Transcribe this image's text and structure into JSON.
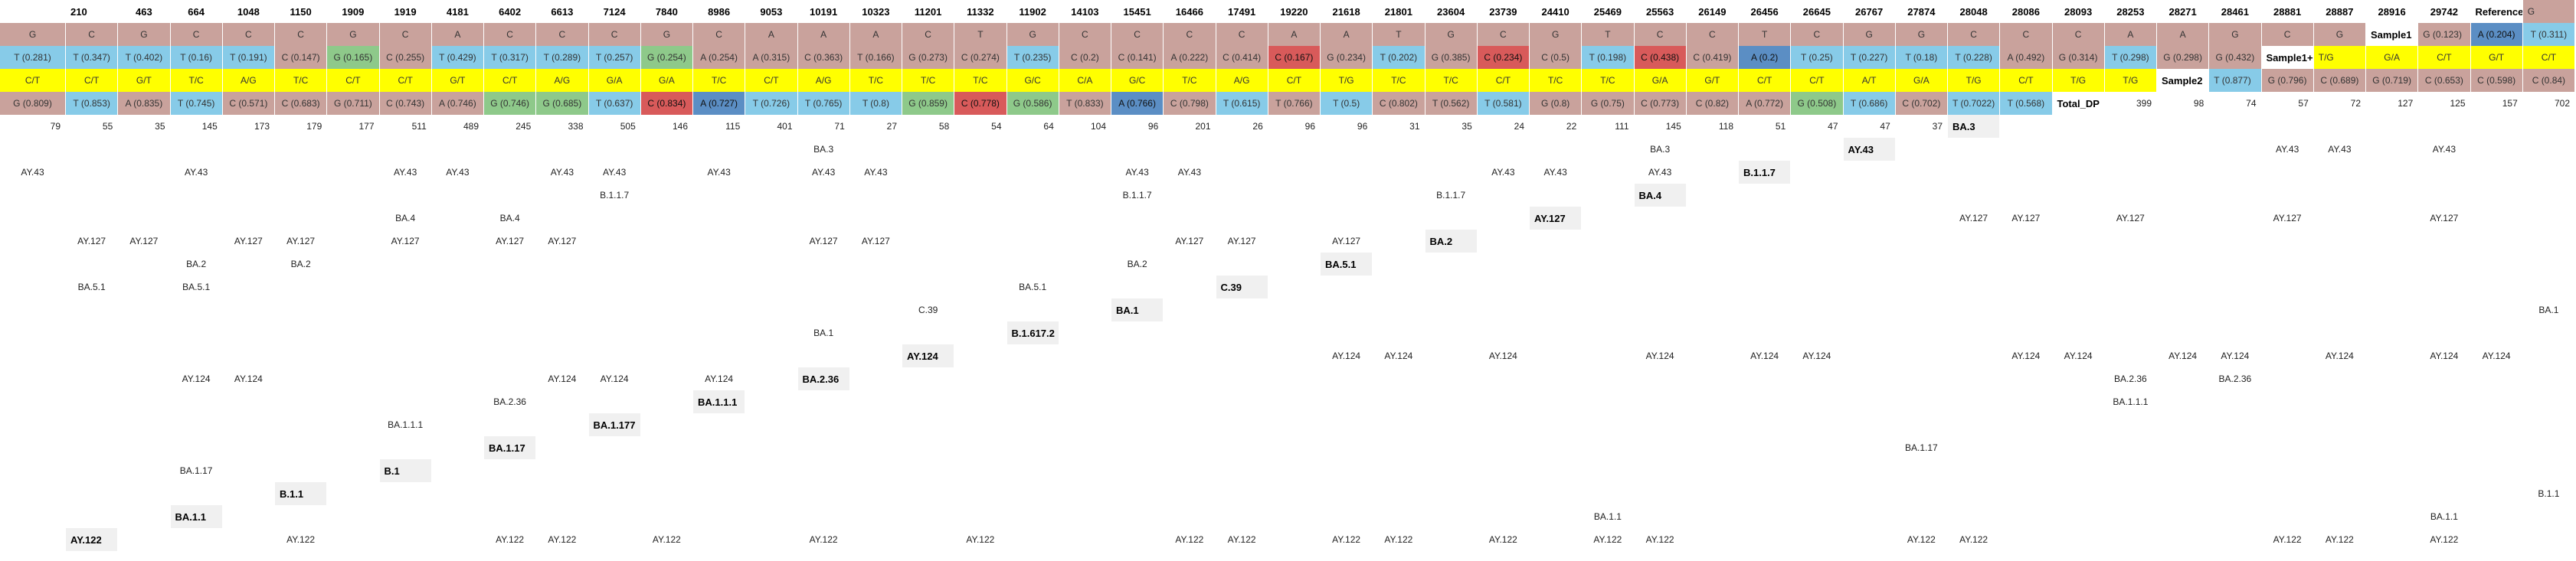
{
  "positions": [
    "210",
    "463",
    "664",
    "1048",
    "1150",
    "1909",
    "1919",
    "4181",
    "6402",
    "6613",
    "7124",
    "7840",
    "8986",
    "9053",
    "10191",
    "10323",
    "11201",
    "11332",
    "11902",
    "14103",
    "15451",
    "16466",
    "17491",
    "19220",
    "21618",
    "21801",
    "23604",
    "23739",
    "24410",
    "25469",
    "25563",
    "26149",
    "26456",
    "26645",
    "26767",
    "27874",
    "28048",
    "28086",
    "28093",
    "28253",
    "28271",
    "28461",
    "28881",
    "28887",
    "28916",
    "29742"
  ],
  "colors": {
    "G": "#c9a29c",
    "C": "#c9a29c",
    "A": "#c9a29c",
    "T": "#c9a29c",
    "blue": "#5b8ec4",
    "lightblue": "#87cbe8",
    "green": "#8ec98a",
    "red": "#d85a5a",
    "yellow": "#ffff00"
  },
  "rows": [
    {
      "label": "Reference",
      "cells": [
        {
          "t": "G",
          "c": "G"
        },
        {
          "t": "G",
          "c": "G"
        },
        {
          "t": "C",
          "c": "C"
        },
        {
          "t": "G",
          "c": "G"
        },
        {
          "t": "C",
          "c": "C"
        },
        {
          "t": "C",
          "c": "C"
        },
        {
          "t": "C",
          "c": "C"
        },
        {
          "t": "G",
          "c": "G"
        },
        {
          "t": "C",
          "c": "C"
        },
        {
          "t": "A",
          "c": "A"
        },
        {
          "t": "C",
          "c": "C"
        },
        {
          "t": "C",
          "c": "C"
        },
        {
          "t": "C",
          "c": "C"
        },
        {
          "t": "G",
          "c": "G"
        },
        {
          "t": "C",
          "c": "C"
        },
        {
          "t": "A",
          "c": "A"
        },
        {
          "t": "A",
          "c": "A"
        },
        {
          "t": "A",
          "c": "A"
        },
        {
          "t": "C",
          "c": "C"
        },
        {
          "t": "T",
          "c": "T"
        },
        {
          "t": "G",
          "c": "G"
        },
        {
          "t": "C",
          "c": "C"
        },
        {
          "t": "C",
          "c": "C"
        },
        {
          "t": "C",
          "c": "C"
        },
        {
          "t": "C",
          "c": "C"
        },
        {
          "t": "A",
          "c": "A"
        },
        {
          "t": "A",
          "c": "A"
        },
        {
          "t": "T",
          "c": "T"
        },
        {
          "t": "G",
          "c": "G"
        },
        {
          "t": "C",
          "c": "C"
        },
        {
          "t": "G",
          "c": "G"
        },
        {
          "t": "T",
          "c": "T"
        },
        {
          "t": "C",
          "c": "C"
        },
        {
          "t": "C",
          "c": "C"
        },
        {
          "t": "T",
          "c": "T"
        },
        {
          "t": "C",
          "c": "C"
        },
        {
          "t": "G",
          "c": "G"
        },
        {
          "t": "G",
          "c": "G"
        },
        {
          "t": "C",
          "c": "C"
        },
        {
          "t": "C",
          "c": "C"
        },
        {
          "t": "C",
          "c": "C"
        },
        {
          "t": "A",
          "c": "A"
        },
        {
          "t": "A",
          "c": "A"
        },
        {
          "t": "G",
          "c": "G"
        },
        {
          "t": "C",
          "c": "C"
        },
        {
          "t": "G",
          "c": "G"
        }
      ]
    },
    {
      "label": "Sample1",
      "cells": [
        {
          "t": "G (0.123)",
          "c": "G"
        },
        {
          "t": "A (0.204)",
          "c": "blue"
        },
        {
          "t": "T (0.311)",
          "c": "lightblue"
        },
        {
          "t": "T (0.281)",
          "c": "lightblue"
        },
        {
          "t": "T (0.347)",
          "c": "lightblue"
        },
        {
          "t": "T (0.402)",
          "c": "lightblue"
        },
        {
          "t": "T (0.16)",
          "c": "lightblue"
        },
        {
          "t": "T (0.191)",
          "c": "lightblue"
        },
        {
          "t": "C (0.147)",
          "c": "C"
        },
        {
          "t": "G (0.165)",
          "c": "green"
        },
        {
          "t": "C (0.255)",
          "c": "C"
        },
        {
          "t": "T (0.429)",
          "c": "lightblue"
        },
        {
          "t": "T (0.317)",
          "c": "lightblue"
        },
        {
          "t": "T (0.289)",
          "c": "lightblue"
        },
        {
          "t": "T (0.257)",
          "c": "lightblue"
        },
        {
          "t": "G (0.254)",
          "c": "green"
        },
        {
          "t": "A (0.254)",
          "c": "A"
        },
        {
          "t": "A (0.315)",
          "c": "A"
        },
        {
          "t": "C (0.363)",
          "c": "C"
        },
        {
          "t": "T (0.166)",
          "c": "T"
        },
        {
          "t": "G (0.273)",
          "c": "G"
        },
        {
          "t": "C (0.274)",
          "c": "C"
        },
        {
          "t": "T (0.235)",
          "c": "lightblue"
        },
        {
          "t": "C (0.2)",
          "c": "C"
        },
        {
          "t": "C (0.141)",
          "c": "C"
        },
        {
          "t": "A (0.222)",
          "c": "A"
        },
        {
          "t": "C (0.414)",
          "c": "C"
        },
        {
          "t": "C (0.167)",
          "c": "red"
        },
        {
          "t": "G (0.234)",
          "c": "G"
        },
        {
          "t": "T (0.202)",
          "c": "lightblue"
        },
        {
          "t": "G (0.385)",
          "c": "G"
        },
        {
          "t": "C (0.234)",
          "c": "red"
        },
        {
          "t": "C (0.5)",
          "c": "C"
        },
        {
          "t": "T (0.198)",
          "c": "lightblue"
        },
        {
          "t": "C (0.438)",
          "c": "red"
        },
        {
          "t": "C (0.419)",
          "c": "C"
        },
        {
          "t": "A (0.2)",
          "c": "blue"
        },
        {
          "t": "T (0.25)",
          "c": "lightblue"
        },
        {
          "t": "T (0.227)",
          "c": "lightblue"
        },
        {
          "t": "T (0.18)",
          "c": "lightblue"
        },
        {
          "t": "T (0.228)",
          "c": "lightblue"
        },
        {
          "t": "A (0.492)",
          "c": "A"
        },
        {
          "t": "G (0.314)",
          "c": "G"
        },
        {
          "t": "T (0.298)",
          "c": "lightblue"
        },
        {
          "t": "G (0.298)",
          "c": "G"
        },
        {
          "t": "G (0.432)",
          "c": "G"
        }
      ]
    },
    {
      "label": "Sample1+2",
      "cells": [
        {
          "t": "T/G",
          "c": "yellow"
        },
        {
          "t": "G/A",
          "c": "yellow"
        },
        {
          "t": "C/T",
          "c": "yellow"
        },
        {
          "t": "G/T",
          "c": "yellow"
        },
        {
          "t": "C/T",
          "c": "yellow"
        },
        {
          "t": "C/T",
          "c": "yellow"
        },
        {
          "t": "C/T",
          "c": "yellow"
        },
        {
          "t": "G/T",
          "c": "yellow"
        },
        {
          "t": "T/C",
          "c": "yellow"
        },
        {
          "t": "A/G",
          "c": "yellow"
        },
        {
          "t": "T/C",
          "c": "yellow"
        },
        {
          "t": "C/T",
          "c": "yellow"
        },
        {
          "t": "C/T",
          "c": "yellow"
        },
        {
          "t": "G/T",
          "c": "yellow"
        },
        {
          "t": "C/T",
          "c": "yellow"
        },
        {
          "t": "A/G",
          "c": "yellow"
        },
        {
          "t": "G/A",
          "c": "yellow"
        },
        {
          "t": "G/A",
          "c": "yellow"
        },
        {
          "t": "T/C",
          "c": "yellow"
        },
        {
          "t": "C/T",
          "c": "yellow"
        },
        {
          "t": "A/G",
          "c": "yellow"
        },
        {
          "t": "T/C",
          "c": "yellow"
        },
        {
          "t": "T/C",
          "c": "yellow"
        },
        {
          "t": "T/C",
          "c": "yellow"
        },
        {
          "t": "G/C",
          "c": "yellow"
        },
        {
          "t": "C/A",
          "c": "yellow"
        },
        {
          "t": "G/C",
          "c": "yellow"
        },
        {
          "t": "T/C",
          "c": "yellow"
        },
        {
          "t": "A/G",
          "c": "yellow"
        },
        {
          "t": "C/T",
          "c": "yellow"
        },
        {
          "t": "T/G",
          "c": "yellow"
        },
        {
          "t": "T/C",
          "c": "yellow"
        },
        {
          "t": "T/C",
          "c": "yellow"
        },
        {
          "t": "C/T",
          "c": "yellow"
        },
        {
          "t": "T/C",
          "c": "yellow"
        },
        {
          "t": "T/C",
          "c": "yellow"
        },
        {
          "t": "G/A",
          "c": "yellow"
        },
        {
          "t": "G/T",
          "c": "yellow"
        },
        {
          "t": "C/T",
          "c": "yellow"
        },
        {
          "t": "C/T",
          "c": "yellow"
        },
        {
          "t": "A/T",
          "c": "yellow"
        },
        {
          "t": "G/A",
          "c": "yellow"
        },
        {
          "t": "T/G",
          "c": "yellow"
        },
        {
          "t": "C/T",
          "c": "yellow"
        },
        {
          "t": "T/G",
          "c": "yellow"
        },
        {
          "t": "T/G",
          "c": "yellow"
        }
      ]
    },
    {
      "label": "Sample2",
      "cells": [
        {
          "t": "T (0.877)",
          "c": "lightblue"
        },
        {
          "t": "G (0.796)",
          "c": "G"
        },
        {
          "t": "C (0.689)",
          "c": "C"
        },
        {
          "t": "G (0.719)",
          "c": "G"
        },
        {
          "t": "C (0.653)",
          "c": "C"
        },
        {
          "t": "C (0.598)",
          "c": "C"
        },
        {
          "t": "C (0.84)",
          "c": "C"
        },
        {
          "t": "G (0.809)",
          "c": "G"
        },
        {
          "t": "T (0.853)",
          "c": "lightblue"
        },
        {
          "t": "A (0.835)",
          "c": "A"
        },
        {
          "t": "T (0.745)",
          "c": "lightblue"
        },
        {
          "t": "C (0.571)",
          "c": "C"
        },
        {
          "t": "C (0.683)",
          "c": "C"
        },
        {
          "t": "G (0.711)",
          "c": "G"
        },
        {
          "t": "C (0.743)",
          "c": "C"
        },
        {
          "t": "A (0.746)",
          "c": "A"
        },
        {
          "t": "G (0.746)",
          "c": "green"
        },
        {
          "t": "G (0.685)",
          "c": "green"
        },
        {
          "t": "T (0.637)",
          "c": "lightblue"
        },
        {
          "t": "C (0.834)",
          "c": "red"
        },
        {
          "t": "A (0.727)",
          "c": "blue"
        },
        {
          "t": "T (0.726)",
          "c": "lightblue"
        },
        {
          "t": "T (0.765)",
          "c": "lightblue"
        },
        {
          "t": "T (0.8)",
          "c": "lightblue"
        },
        {
          "t": "G (0.859)",
          "c": "green"
        },
        {
          "t": "C (0.778)",
          "c": "red"
        },
        {
          "t": "G (0.586)",
          "c": "green"
        },
        {
          "t": "T (0.833)",
          "c": "T"
        },
        {
          "t": "A (0.766)",
          "c": "blue"
        },
        {
          "t": "C (0.798)",
          "c": "C"
        },
        {
          "t": "T (0.615)",
          "c": "lightblue"
        },
        {
          "t": "T (0.766)",
          "c": "T"
        },
        {
          "t": "T (0.5)",
          "c": "lightblue"
        },
        {
          "t": "C (0.802)",
          "c": "C"
        },
        {
          "t": "T (0.562)",
          "c": "T"
        },
        {
          "t": "T (0.581)",
          "c": "lightblue"
        },
        {
          "t": "G (0.8)",
          "c": "G"
        },
        {
          "t": "G (0.75)",
          "c": "G"
        },
        {
          "t": "C (0.773)",
          "c": "C"
        },
        {
          "t": "C (0.82)",
          "c": "C"
        },
        {
          "t": "A (0.772)",
          "c": "A"
        },
        {
          "t": "G (0.508)",
          "c": "green"
        },
        {
          "t": "T (0.686)",
          "c": "lightblue"
        },
        {
          "t": "C (0.702)",
          "c": "C"
        },
        {
          "t": "T (0.7022)",
          "c": "lightblue"
        },
        {
          "t": "T (0.568)",
          "c": "lightblue"
        }
      ]
    }
  ],
  "total_dp": {
    "label": "Total_DP",
    "values": [
      "399",
      "98",
      "74",
      "57",
      "72",
      "127",
      "125",
      "157",
      "702",
      "79",
      "55",
      "35",
      "145",
      "173",
      "179",
      "177",
      "511",
      "489",
      "245",
      "338",
      "505",
      "146",
      "115",
      "401",
      "71",
      "27",
      "58",
      "54",
      "64",
      "104",
      "96",
      "201",
      "26",
      "96",
      "96",
      "31",
      "35",
      "24",
      "22",
      "111",
      "145",
      "118",
      "51",
      "47",
      "47",
      "37"
    ]
  },
  "lineages": [
    {
      "label": "BA.3",
      "cells": {
        "26": "BA.3",
        "42": "BA.3"
      }
    },
    {
      "label": "AY.43",
      "cells": {
        "7": "AY.43",
        "8": "AY.43",
        "10": "AY.43",
        "13": "AY.43",
        "16": "AY.43",
        "20": "AY.43",
        "21": "AY.43",
        "23": "AY.43",
        "24": "AY.43",
        "26": "AY.43",
        "28": "AY.43",
        "29": "AY.43",
        "34": "AY.43",
        "35": "AY.43",
        "41": "AY.43",
        "42": "AY.43",
        "44": "AY.43"
      }
    },
    {
      "label": "B.1.1.7",
      "cells": {
        "26": "B.1.1.7",
        "36": "B.1.1.7",
        "42": "B.1.1.7"
      }
    },
    {
      "label": "BA.4",
      "cells": {
        "24": "BA.4",
        "26": "BA.4"
      }
    },
    {
      "label": "AY.127",
      "cells": {
        "7": "AY.127",
        "8": "AY.127",
        "10": "AY.127",
        "13": "AY.127",
        "16": "AY.127",
        "20": "AY.127",
        "21": "AY.127",
        "23": "AY.127",
        "24": "AY.127",
        "26": "AY.127",
        "28": "AY.127",
        "29": "AY.127",
        "34": "AY.127",
        "35": "AY.127",
        "41": "AY.127",
        "42": "AY.127",
        "44": "AY.127"
      }
    },
    {
      "label": "BA.2",
      "cells": {
        "24": "BA.2",
        "26": "BA.2",
        "42": "BA.2"
      }
    },
    {
      "label": "BA.5.1",
      "cells": {
        "24": "BA.5.1",
        "26": "BA.5.1",
        "42": "BA.5.1"
      }
    },
    {
      "label": "C.39",
      "cells": {
        "42": "C.39"
      }
    },
    {
      "label": "BA.1",
      "cells": {
        "26": "BA.1",
        "42": "BA.1"
      }
    },
    {
      "label": "B.1.617.2",
      "cells": {}
    },
    {
      "label": "AY.124",
      "cells": {
        "7": "AY.124",
        "8": "AY.124",
        "10": "AY.124",
        "13": "AY.124",
        "15": "AY.124",
        "16": "AY.124",
        "20": "AY.124",
        "21": "AY.124",
        "23": "AY.124",
        "24": "AY.124",
        "26": "AY.124",
        "28": "AY.124",
        "29": "AY.124",
        "34": "AY.124",
        "35": "AY.124",
        "41": "AY.124",
        "42": "AY.124",
        "44": "AY.124"
      }
    },
    {
      "label": "BA.2.36",
      "cells": {
        "24": "BA.2.36",
        "26": "BA.2.36",
        "42": "BA.2.36"
      }
    },
    {
      "label": "BA.1.1.1",
      "cells": {
        "26": "BA.1.1.1",
        "42": "BA.1.1.1"
      }
    },
    {
      "label": "BA.1.177",
      "cells": {}
    },
    {
      "label": "BA.1.17",
      "cells": {
        "26": "BA.1.17",
        "42": "BA.1.17"
      }
    },
    {
      "label": "B.1",
      "cells": {}
    },
    {
      "label": "B.1.1",
      "cells": {
        "42": "B.1.1"
      }
    },
    {
      "label": "BA.1.1",
      "cells": {
        "26": "BA.1.1",
        "42": "BA.1.1"
      }
    },
    {
      "label": "AY.122",
      "cells": {
        "3": "AY.122",
        "7": "AY.122",
        "8": "AY.122",
        "10": "AY.122",
        "13": "AY.122",
        "16": "AY.122",
        "20": "AY.122",
        "21": "AY.122",
        "23": "AY.122",
        "24": "AY.122",
        "26": "AY.122",
        "28": "AY.122",
        "29": "AY.122",
        "34": "AY.122",
        "35": "AY.122",
        "41": "AY.122",
        "42": "AY.122",
        "44": "AY.122"
      }
    }
  ]
}
